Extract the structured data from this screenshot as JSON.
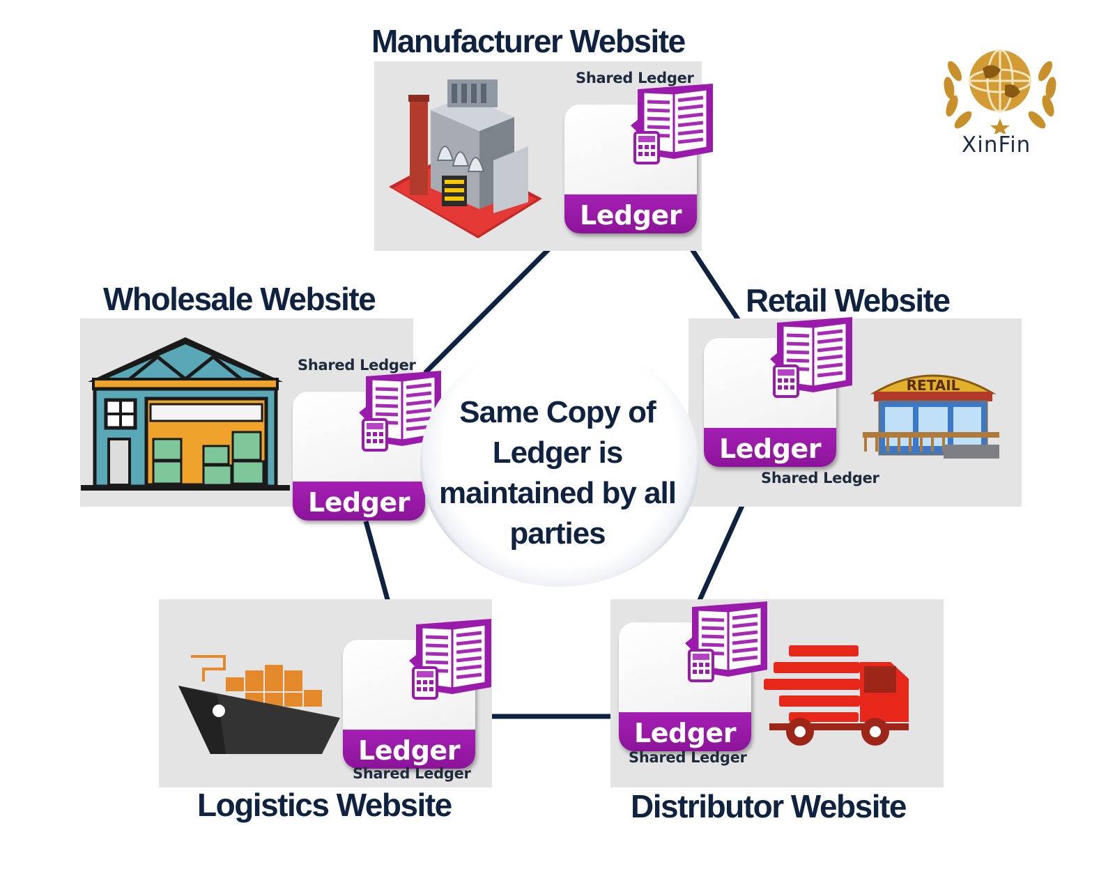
{
  "logo": {
    "text": "XinFin"
  },
  "center": {
    "text": "Same Copy of Ledger is maintained by all parties"
  },
  "ledger_label": "Ledger",
  "nodes": {
    "manufacturer": {
      "title": "Manufacturer Website",
      "shared": "Shared Ledger",
      "ledger": "Ledger"
    },
    "wholesale": {
      "title": "Wholesale Website",
      "shared": "Shared Ledger",
      "ledger": "Ledger"
    },
    "retail": {
      "title": "Retail Website",
      "shared": "Shared Ledger",
      "ledger": "Ledger",
      "sign": "RETAIL"
    },
    "logistics": {
      "title": "Logistics Website",
      "shared": "Shared Ledger",
      "ledger": "Ledger"
    },
    "distributor": {
      "title": "Distributor Website",
      "shared": "Shared Ledger",
      "ledger": "Ledger"
    }
  },
  "colors": {
    "navy": "#0f2240",
    "ledger_purple": "#a020b0",
    "panel_gray": "#e4e4e4",
    "gold": "#c8902a",
    "truck_red": "#e8271b"
  }
}
